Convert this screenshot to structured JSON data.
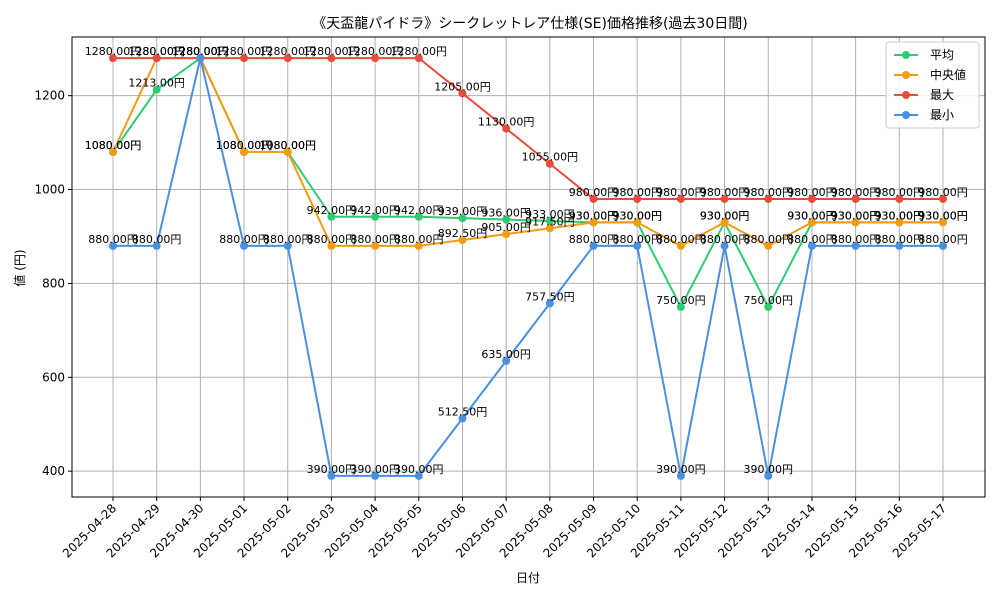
{
  "chart_data": {
    "type": "line",
    "title": "《天盃龍パイドラ》シークレットレア仕様(SE)価格推移(過去30日間)",
    "xlabel": "日付",
    "ylabel": "値 (円)",
    "ylim": [
      345,
      1325
    ],
    "yticks": [
      400,
      600,
      800,
      1000,
      1200
    ],
    "grid": true,
    "legend_position": "top-right",
    "value_suffix": "円",
    "categories": [
      "2025-04-28",
      "2025-04-29",
      "2025-04-30",
      "2025-05-01",
      "2025-05-02",
      "2025-05-03",
      "2025-05-04",
      "2025-05-05",
      "2025-05-06",
      "2025-05-07",
      "2025-05-08",
      "2025-05-09",
      "2025-05-10",
      "2025-05-11",
      "2025-05-12",
      "2025-05-13",
      "2025-05-14",
      "2025-05-15",
      "2025-05-16",
      "2025-05-17"
    ],
    "series": [
      {
        "name": "平均",
        "color": "#2ecc71",
        "values": [
          1080,
          1213,
          1280,
          1080,
          1080,
          942,
          942,
          942,
          939,
          936,
          933,
          930,
          930,
          750,
          930,
          750,
          930,
          930,
          930,
          930
        ]
      },
      {
        "name": "中央値",
        "color": "#f39c12",
        "values": [
          1080,
          1280,
          1280,
          1080,
          1080,
          880,
          880,
          880,
          892.5,
          905,
          917.5,
          930,
          930,
          880,
          930,
          880,
          930,
          930,
          930,
          930
        ]
      },
      {
        "name": "最大",
        "color": "#e74c3c",
        "values": [
          1280,
          1280,
          1280,
          1280,
          1280,
          1280,
          1280,
          1280,
          1205,
          1130,
          1055,
          980,
          980,
          980,
          980,
          980,
          980,
          980,
          980,
          980
        ]
      },
      {
        "name": "最小",
        "color": "#4a90e2",
        "values": [
          880,
          880,
          1280,
          880,
          880,
          390,
          390,
          390,
          512.5,
          635,
          757.5,
          880,
          880,
          390,
          880,
          390,
          880,
          880,
          880,
          880
        ]
      }
    ]
  }
}
